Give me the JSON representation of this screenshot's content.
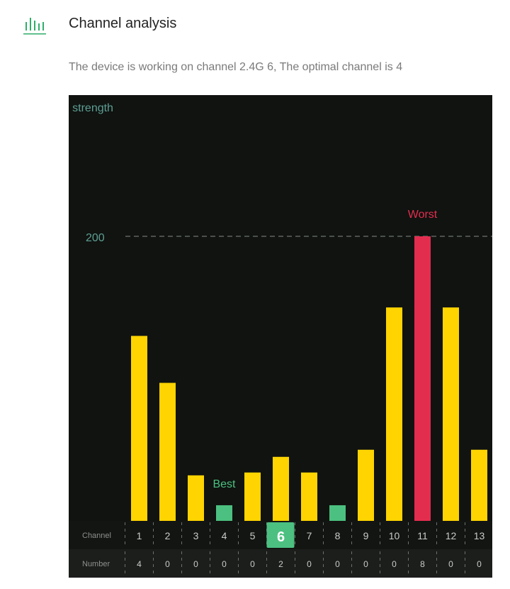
{
  "header": {
    "icon": "signal-bars-icon",
    "title": "Channel analysis",
    "description": "The device is working on channel 2.4G 6, The optimal channel is 4"
  },
  "colors": {
    "accent": "#2fae6a",
    "normal_bar": "#ffd400",
    "best_bar": "#4cc080",
    "worst_bar": "#e32d4f",
    "panel_bg": "#101310",
    "table_bg": "#1c1e1c"
  },
  "chart_data": {
    "type": "bar",
    "title": "ence strength",
    "reference_line": {
      "value": 200,
      "label": "200"
    },
    "ylim": [
      0,
      240
    ],
    "categories": [
      "1",
      "2",
      "3",
      "4",
      "5",
      "6",
      "7",
      "8",
      "9",
      "10",
      "11",
      "12",
      "13"
    ],
    "values": [
      130,
      97,
      32,
      11,
      34,
      45,
      34,
      11,
      50,
      150,
      200,
      150,
      50
    ],
    "numbers": [
      "4",
      "0",
      "0",
      "0",
      "0",
      "2",
      "0",
      "0",
      "0",
      "0",
      "8",
      "0",
      "0"
    ],
    "best_channels": [
      "4",
      "8"
    ],
    "worst_channel": "11",
    "current_channel": "6",
    "best_label": "Best",
    "worst_label": "Worst",
    "row_labels": {
      "channel": "Channel",
      "number": "Number"
    }
  }
}
